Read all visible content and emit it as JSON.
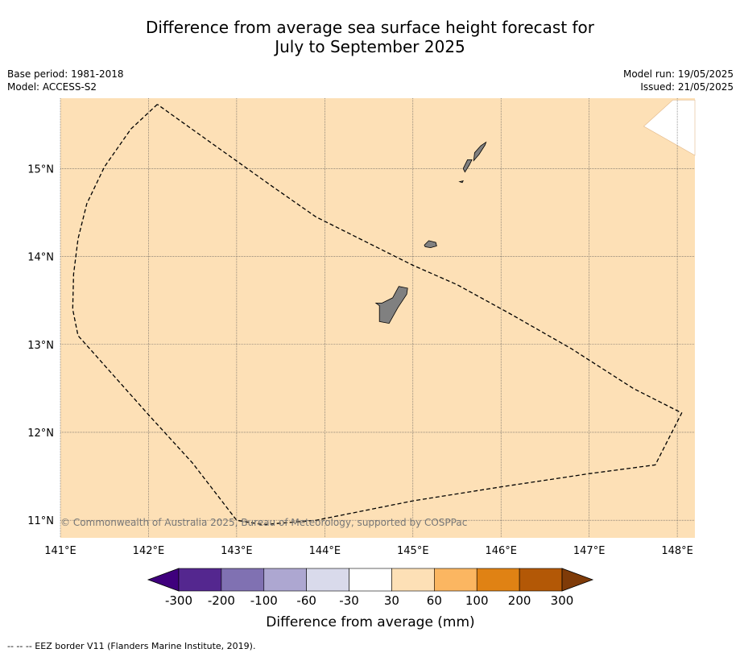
{
  "header": {
    "title_line1": "Difference from average sea surface height forecast for",
    "title_line2": "July to September 2025",
    "base_period": "Base period: 1981-2018",
    "model": "Model: ACCESS-S2",
    "model_run": "Model run: 19/05/2025",
    "issued": "Issued: 21/05/2025"
  },
  "map": {
    "lon_range": [
      141,
      148.2
    ],
    "lat_range": [
      10.8,
      15.8
    ],
    "lon_ticks": [
      {
        "value": 141,
        "label": "141°E"
      },
      {
        "value": 142,
        "label": "142°E"
      },
      {
        "value": 143,
        "label": "143°E"
      },
      {
        "value": 144,
        "label": "144°E"
      },
      {
        "value": 145,
        "label": "145°E"
      },
      {
        "value": 146,
        "label": "146°E"
      },
      {
        "value": 147,
        "label": "147°E"
      },
      {
        "value": 148,
        "label": "148°E"
      }
    ],
    "lat_ticks": [
      {
        "value": 11,
        "label": "11°N"
      },
      {
        "value": 12,
        "label": "12°N"
      },
      {
        "value": 13,
        "label": "13°N"
      },
      {
        "value": 14,
        "label": "14°N"
      },
      {
        "value": 15,
        "label": "15°N"
      }
    ],
    "fill_color": "#fde0b6",
    "copyright": "© Commonwealth of Australia 2025, Bureau of Meteorology, supported by COSPPac",
    "eez_border": [
      [
        142.1,
        15.73
      ],
      [
        141.8,
        15.45
      ],
      [
        141.5,
        15.02
      ],
      [
        141.3,
        14.6
      ],
      [
        141.2,
        14.2
      ],
      [
        141.15,
        13.8
      ],
      [
        141.14,
        13.4
      ],
      [
        141.2,
        13.1
      ],
      [
        141.6,
        12.65
      ],
      [
        142.0,
        12.2
      ],
      [
        142.5,
        11.65
      ],
      [
        143.0,
        11.0
      ],
      [
        143.3,
        10.95
      ],
      [
        143.9,
        11.0
      ],
      [
        145.0,
        11.22
      ],
      [
        146.0,
        11.38
      ],
      [
        147.0,
        11.53
      ],
      [
        147.75,
        11.63
      ],
      [
        148.05,
        12.22
      ],
      [
        147.5,
        12.5
      ],
      [
        146.8,
        12.95
      ],
      [
        146.1,
        13.35
      ],
      [
        145.5,
        13.68
      ],
      [
        145.0,
        13.9
      ],
      [
        144.5,
        14.15
      ],
      [
        143.9,
        14.45
      ],
      [
        143.4,
        14.8
      ],
      [
        142.7,
        15.3
      ],
      [
        142.1,
        15.73
      ]
    ],
    "islands": [
      {
        "name": "Guam",
        "coords": [
          [
            144.62,
            13.26
          ],
          [
            144.73,
            13.24
          ],
          [
            144.83,
            13.42
          ],
          [
            144.93,
            13.57
          ],
          [
            144.94,
            13.64
          ],
          [
            144.84,
            13.66
          ],
          [
            144.77,
            13.53
          ],
          [
            144.65,
            13.47
          ],
          [
            144.58,
            13.47
          ],
          [
            144.62,
            13.44
          ]
        ]
      },
      {
        "name": "Rota",
        "coords": [
          [
            145.13,
            14.13
          ],
          [
            145.18,
            14.18
          ],
          [
            145.26,
            14.16
          ],
          [
            145.27,
            14.12
          ],
          [
            145.2,
            14.1
          ],
          [
            145.14,
            14.11
          ]
        ]
      },
      {
        "name": "Tinian",
        "coords": [
          [
            145.59,
            14.96
          ],
          [
            145.64,
            15.04
          ],
          [
            145.67,
            15.1
          ],
          [
            145.62,
            15.1
          ],
          [
            145.57,
            15.0
          ]
        ]
      },
      {
        "name": "Saipan",
        "coords": [
          [
            145.69,
            15.09
          ],
          [
            145.75,
            15.16
          ],
          [
            145.82,
            15.27
          ],
          [
            145.83,
            15.3
          ],
          [
            145.77,
            15.26
          ],
          [
            145.7,
            15.18
          ]
        ]
      },
      {
        "name": "Aguijan",
        "coords": [
          [
            145.53,
            14.85
          ],
          [
            145.57,
            14.86
          ],
          [
            145.56,
            14.84
          ]
        ]
      }
    ],
    "no_data_region": [
      [
        147.62,
        15.48
      ],
      [
        147.95,
        15.78
      ],
      [
        148.2,
        15.78
      ],
      [
        148.2,
        15.15
      ]
    ]
  },
  "legend": {
    "colors": [
      "#3f007d",
      "#54278f",
      "#8071b2",
      "#ada7d1",
      "#d9daeb",
      "#ffffff",
      "#fde0b6",
      "#fbb661",
      "#e08214",
      "#b35806",
      "#7f3b08"
    ],
    "tick_labels": [
      "-300",
      "-200",
      "-100",
      "-60",
      "-30",
      "30",
      "60",
      "100",
      "200",
      "300"
    ],
    "title": "Difference from average (mm)"
  },
  "footer": {
    "eez_note": "--  --  -- EEZ border V11 (Flanders Marine Institute, 2019)."
  }
}
